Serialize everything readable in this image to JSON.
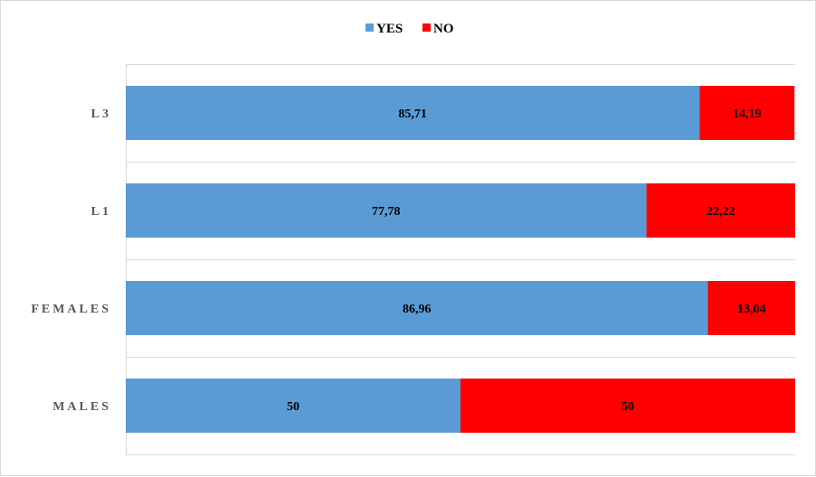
{
  "chart_data": {
    "type": "bar",
    "orientation": "horizontal",
    "stacked": true,
    "categories": [
      "L3",
      "L1",
      "FEMALES",
      "MALES"
    ],
    "series": [
      {
        "name": "YES",
        "color": "#5b9bd5",
        "values": [
          85.71,
          77.78,
          86.96,
          50
        ]
      },
      {
        "name": "NO",
        "color": "#ff0000",
        "values": [
          14.19,
          22.22,
          13.04,
          50
        ]
      }
    ],
    "data_labels": {
      "YES": [
        "85,71",
        "77,78",
        "86,96",
        "50"
      ],
      "NO": [
        "14,19",
        "22,22",
        "13,04",
        "50"
      ]
    },
    "xlim": [
      0,
      100
    ],
    "legend": "top-center",
    "grid": "horizontal-separators"
  }
}
